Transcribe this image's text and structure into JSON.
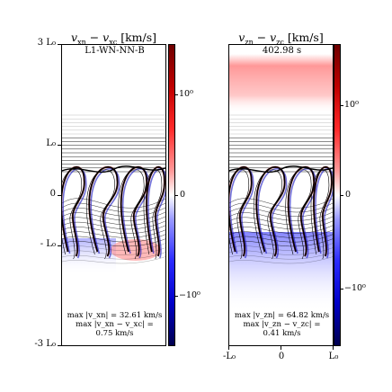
{
  "chart_data": [
    {
      "type": "heatmap",
      "title": "v_xn − v_xc [km/s]",
      "tag": "L1-WN-NN-B",
      "y_ticks": [
        "3 L₀",
        "L₀",
        "0",
        "- L₀",
        "-3 L₀"
      ],
      "colorbar": {
        "ticks": [
          "10⁰",
          "0",
          "−10⁰"
        ],
        "scale": "symlog",
        "colormap": "seismic"
      },
      "annotation": [
        "max |v_xn| = 32.61 km/s",
        "max |v_xn − v_xc| =",
        "0.75 km/s"
      ]
    },
    {
      "type": "heatmap",
      "title": "v_zn − v_zc [km/s]",
      "tag": "402.98 s",
      "x_ticks": [
        "-L₀",
        "0",
        "L₀"
      ],
      "colorbar": {
        "ticks": [
          "10⁰",
          "0",
          "−10⁰"
        ],
        "scale": "symlog",
        "colormap": "seismic"
      },
      "annotation": [
        "max |v_zn| = 64.82 km/s",
        "max |v_zn − v_zc| =",
        "0.41 km/s"
      ]
    }
  ]
}
